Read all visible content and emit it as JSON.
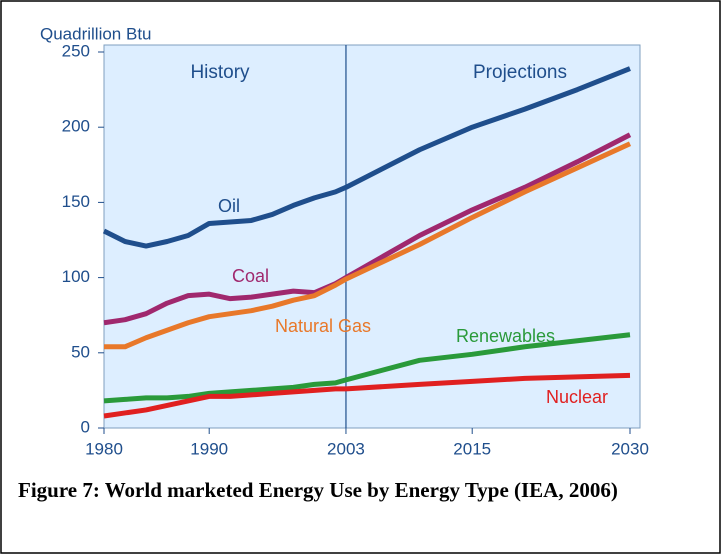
{
  "chart_data": {
    "type": "line",
    "ylabel": "Quadrillion Btu",
    "annotations": [
      "History",
      "Projections"
    ],
    "caption": "Figure 7: World marketed Energy Use by Energy Type (IEA, 2006)",
    "x": [
      1980,
      1982,
      1984,
      1986,
      1988,
      1990,
      1992,
      1994,
      1996,
      1998,
      2000,
      2002,
      2003,
      2010,
      2015,
      2020,
      2025,
      2030
    ],
    "series": [
      {
        "name": "Oil",
        "color": "#1f4e8c",
        "values": [
          131,
          124,
          121,
          124,
          128,
          136,
          137,
          138,
          142,
          148,
          153,
          157,
          160,
          185,
          200,
          212,
          225,
          239
        ]
      },
      {
        "name": "Coal",
        "color": "#a0286e",
        "values": [
          70,
          72,
          76,
          83,
          88,
          89,
          86,
          87,
          89,
          91,
          90,
          96,
          100,
          128,
          145,
          160,
          177,
          195
        ]
      },
      {
        "name": "Natural Gas",
        "color": "#e8782a",
        "values": [
          54,
          54,
          60,
          65,
          70,
          74,
          76,
          78,
          81,
          85,
          88,
          95,
          99,
          122,
          140,
          157,
          173,
          189
        ]
      },
      {
        "name": "Renewables",
        "color": "#2a9a3a",
        "values": [
          18,
          19,
          20,
          20,
          21,
          23,
          24,
          25,
          26,
          27,
          29,
          30,
          32,
          45,
          49,
          54,
          58,
          62
        ]
      },
      {
        "name": "Nuclear",
        "color": "#e02020",
        "values": [
          8,
          10,
          12,
          15,
          18,
          21,
          21,
          22,
          23,
          24,
          25,
          26,
          26,
          29,
          31,
          33,
          34,
          35
        ]
      }
    ],
    "xlim": [
      1980,
      2030
    ],
    "xticks": [
      1980,
      1990,
      2003,
      2015,
      2030
    ],
    "ylim": [
      0,
      250
    ],
    "yticks": [
      0,
      50,
      100,
      150,
      200,
      250
    ]
  }
}
